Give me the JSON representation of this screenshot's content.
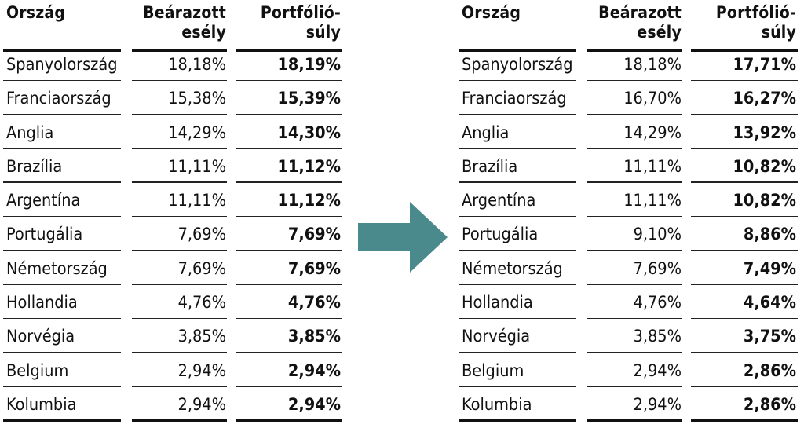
{
  "headers": {
    "country": "Ország",
    "implied_l1": "Beárazott",
    "implied_l2": "esély",
    "weight_l1": "Portfólió-",
    "weight_l2": "súly"
  },
  "left_table": [
    {
      "country": "Spanyolország",
      "implied": "18,18%",
      "weight": "18,19%"
    },
    {
      "country": "Franciaország",
      "implied": "15,38%",
      "weight": "15,39%"
    },
    {
      "country": "Anglia",
      "implied": "14,29%",
      "weight": "14,30%"
    },
    {
      "country": "Brazília",
      "implied": "11,11%",
      "weight": "11,12%"
    },
    {
      "country": "Argentína",
      "implied": "11,11%",
      "weight": "11,12%"
    },
    {
      "country": "Portugália",
      "implied": "7,69%",
      "weight": "7,69%"
    },
    {
      "country": "Németország",
      "implied": "7,69%",
      "weight": "7,69%"
    },
    {
      "country": "Hollandia",
      "implied": "4,76%",
      "weight": "4,76%"
    },
    {
      "country": "Norvégia",
      "implied": "3,85%",
      "weight": "3,85%"
    },
    {
      "country": "Belgium",
      "implied": "2,94%",
      "weight": "2,94%"
    },
    {
      "country": "Kolumbia",
      "implied": "2,94%",
      "weight": "2,94%"
    }
  ],
  "right_table": [
    {
      "country": "Spanyolország",
      "implied": "18,18%",
      "weight": "17,71%"
    },
    {
      "country": "Franciaország",
      "implied": "16,70%",
      "weight": "16,27%"
    },
    {
      "country": "Anglia",
      "implied": "14,29%",
      "weight": "13,92%"
    },
    {
      "country": "Brazília",
      "implied": "11,11%",
      "weight": "10,82%"
    },
    {
      "country": "Argentína",
      "implied": "11,11%",
      "weight": "10,82%"
    },
    {
      "country": "Portugália",
      "implied": "9,10%",
      "weight": "8,86%"
    },
    {
      "country": "Németország",
      "implied": "7,69%",
      "weight": "7,49%"
    },
    {
      "country": "Hollandia",
      "implied": "4,76%",
      "weight": "4,64%"
    },
    {
      "country": "Norvégia",
      "implied": "3,85%",
      "weight": "3,75%"
    },
    {
      "country": "Belgium",
      "implied": "2,94%",
      "weight": "2,86%"
    },
    {
      "country": "Kolumbia",
      "implied": "2,94%",
      "weight": "2,86%"
    }
  ],
  "colors": {
    "arrow": "#4a8a8c",
    "rule": "#222222"
  },
  "icons": {
    "arrow": "right-arrow-icon"
  }
}
